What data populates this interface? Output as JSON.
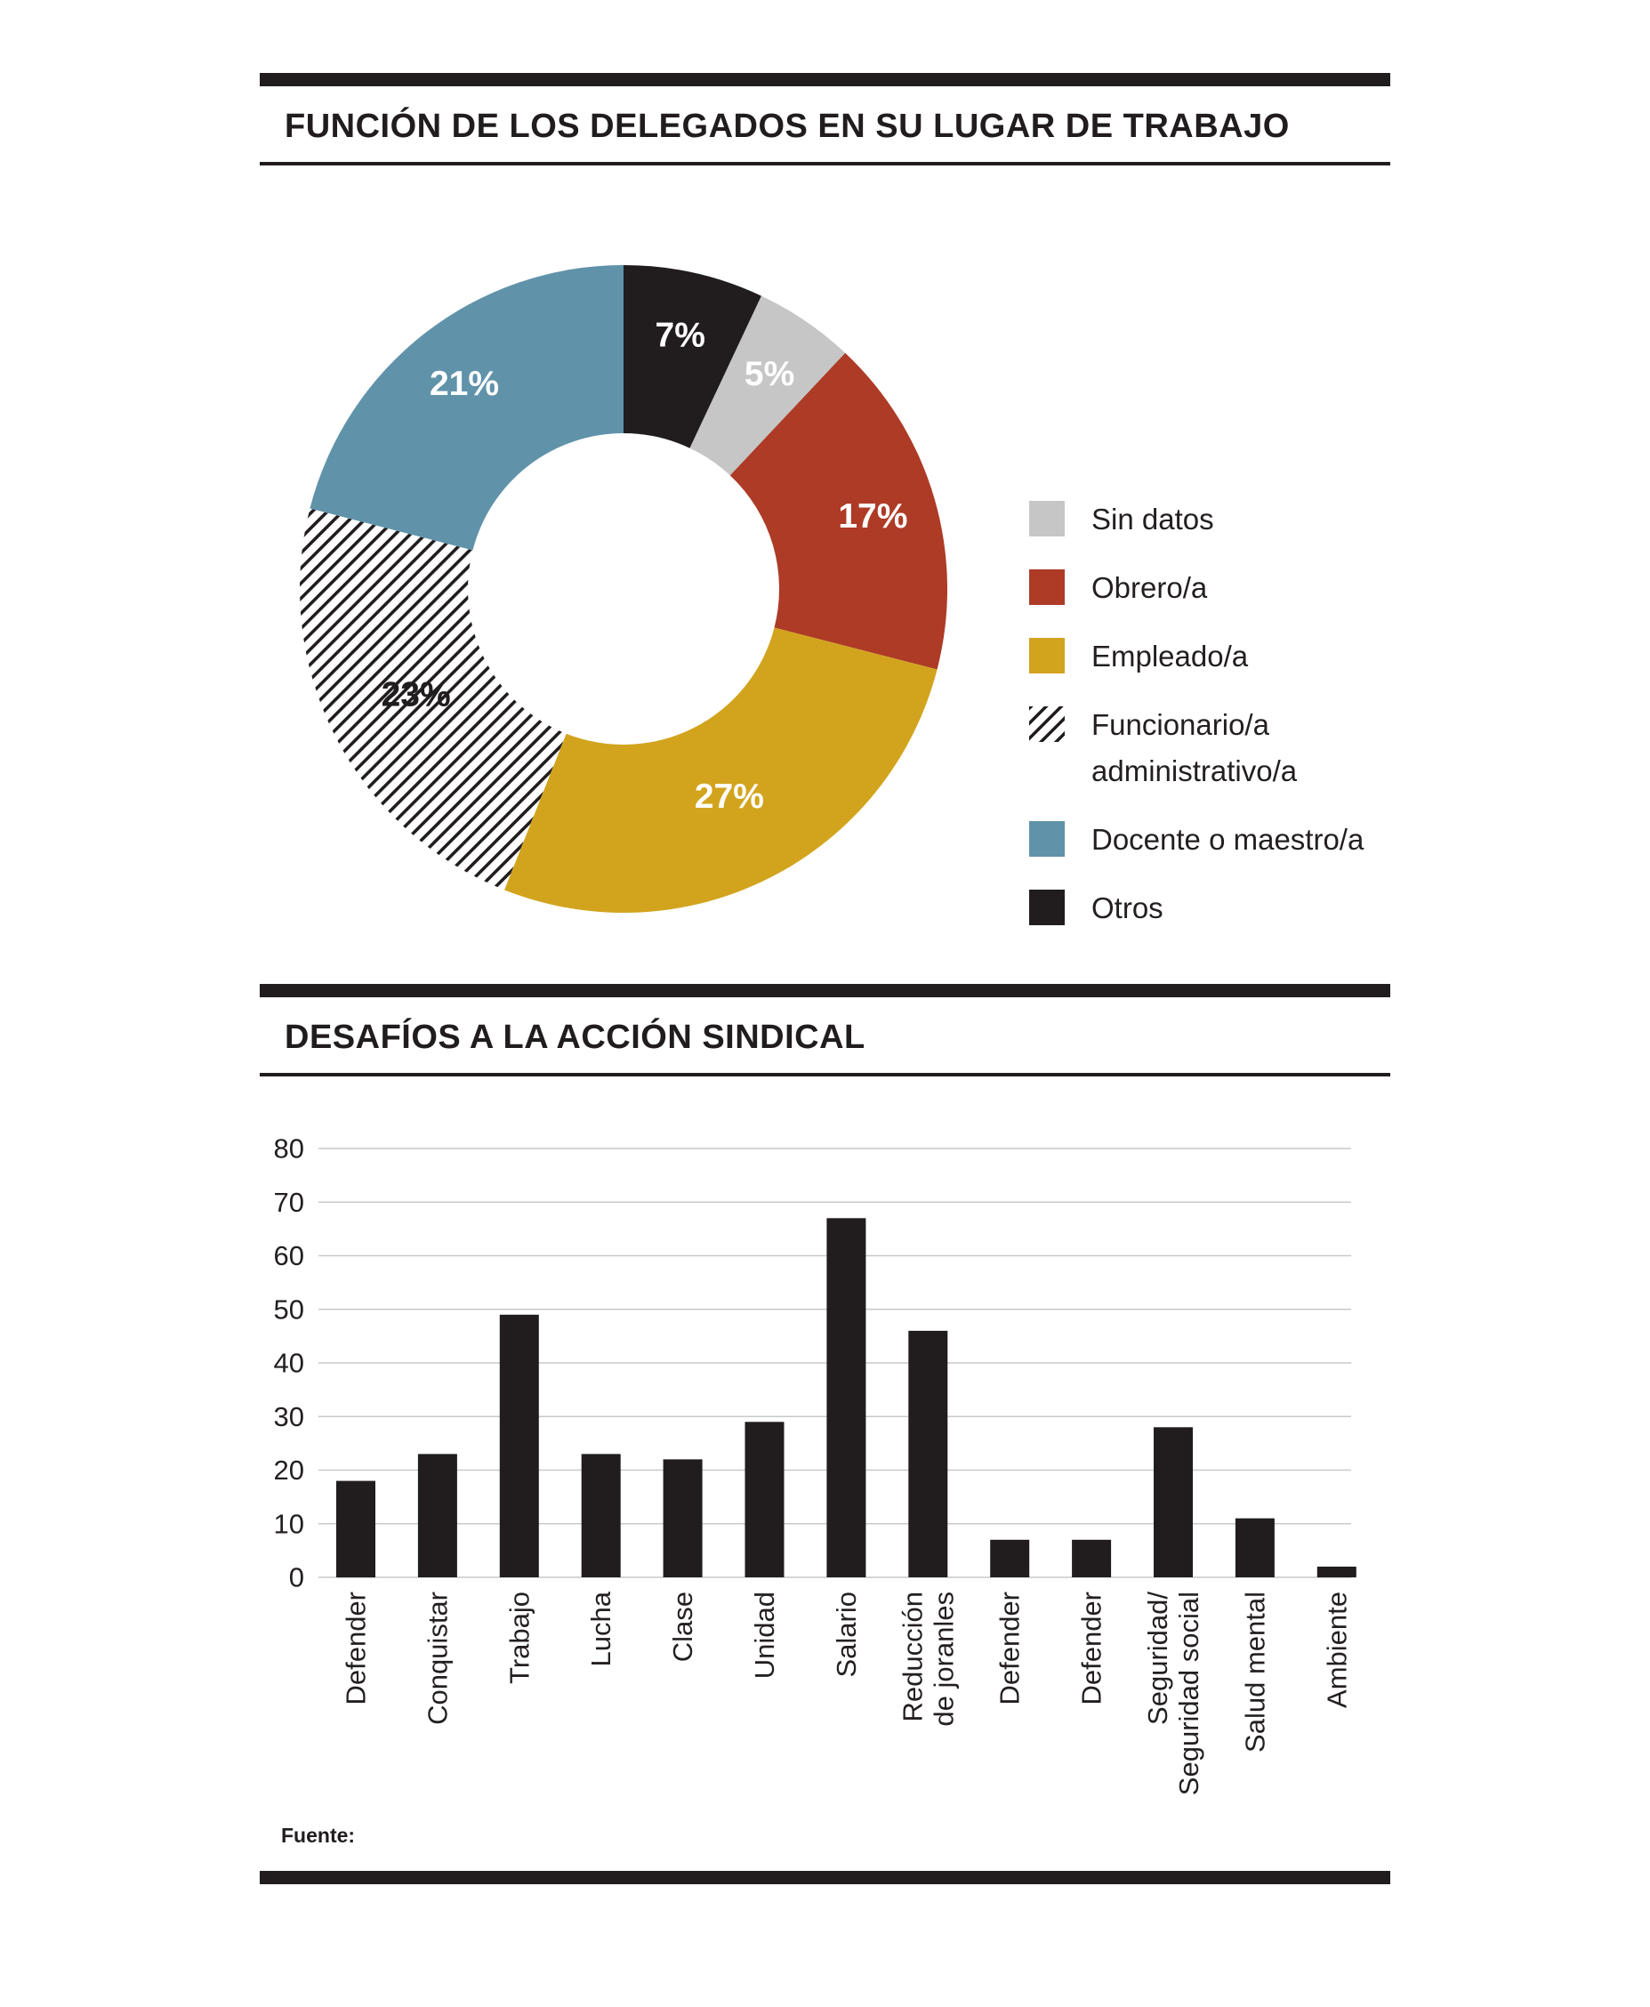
{
  "page": {
    "background": "#ffffff",
    "ink": "#211d1e"
  },
  "sections": [
    {
      "title": "FUNCIÓN DE LOS DELEGADOS EN SU LUGAR DE TRABAJO"
    },
    {
      "title": "DESAFÍOS A LA ACCIÓN SINDICAL"
    }
  ],
  "source_label": "Fuente:",
  "chart_data": [
    {
      "type": "pie",
      "subtype": "donut",
      "title": "FUNCIÓN DE LOS DELEGADOS EN SU LUGAR DE TRABAJO",
      "start_angle_deg": 0,
      "hatch_color": "#211d1e",
      "slices": [
        {
          "label": "Otros",
          "value": 7,
          "value_label": "7%",
          "color": "#211d1e",
          "pattern": null,
          "text_color": "#ffffff"
        },
        {
          "label": "Sin datos",
          "value": 5,
          "value_label": "5%",
          "color": "#c6c6c6",
          "pattern": null,
          "text_color": "#ffffff"
        },
        {
          "label": "Obrero/a",
          "value": 17,
          "value_label": "17%",
          "color": "#ad3b26",
          "pattern": null,
          "text_color": "#ffffff"
        },
        {
          "label": "Empleado/a",
          "value": 27,
          "value_label": "27%",
          "color": "#d2a41e",
          "pattern": null,
          "text_color": "#ffffff"
        },
        {
          "label": "Funcionario/a administrativo/a",
          "value": 23,
          "value_label": "23%",
          "color": "#ffffff",
          "pattern": "hatch",
          "text_color": "#211d1e"
        },
        {
          "label": "Docente o maestro/a",
          "value": 21,
          "value_label": "21%",
          "color": "#6093aa",
          "pattern": null,
          "text_color": "#ffffff"
        }
      ],
      "legend_position": "right",
      "legend": [
        {
          "label": "Sin datos",
          "swatch": "#c6c6c6",
          "lines": [
            "Sin datos"
          ]
        },
        {
          "label": "Obrero/a",
          "swatch": "#ad3b26",
          "lines": [
            "Obrero/a"
          ]
        },
        {
          "label": "Empleado/a",
          "swatch": "#d2a41e",
          "lines": [
            "Empleado/a"
          ]
        },
        {
          "label": "Funcionario/a administrativo/a",
          "swatch": "hatch",
          "lines": [
            "Funcionario/a",
            "administrativo/a"
          ]
        },
        {
          "label": "Docente o maestro/a",
          "swatch": "#6093aa",
          "lines": [
            "Docente o maestro/a"
          ]
        },
        {
          "label": "Otros",
          "swatch": "#211d1e",
          "lines": [
            "Otros"
          ]
        }
      ]
    },
    {
      "type": "bar",
      "title": "DESAFÍOS A LA ACCIÓN SINDICAL",
      "categories": [
        "Defender",
        "Conquistar",
        "Trabajo",
        "Lucha",
        "Clase",
        "Unidad",
        "Salario",
        "Reducción\nde joranles",
        "Defender",
        "Defender",
        "Seguridad/\nSeguridad social",
        "Salud mental",
        "Ambiente"
      ],
      "values": [
        18,
        23,
        49,
        23,
        22,
        29,
        67,
        46,
        7,
        7,
        28,
        11,
        2
      ],
      "ylim": [
        0,
        80
      ],
      "ytick_step": 10,
      "grid": true,
      "bar_color": "#211d1e",
      "gridline_color": "#c9c9c9",
      "source": "Fuente:"
    }
  ]
}
